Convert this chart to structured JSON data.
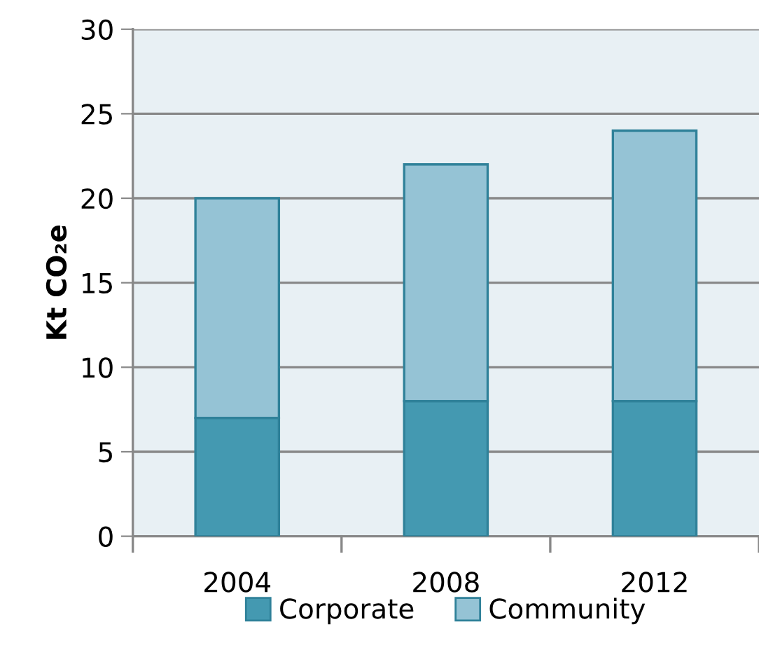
{
  "chart_data": {
    "type": "bar",
    "stacked": true,
    "ylabel": "Kt CO₂e",
    "categories": [
      "2004",
      "2008",
      "2012"
    ],
    "series": [
      {
        "name": "Corporate",
        "color": "#4499b1",
        "values": [
          7,
          8,
          8
        ]
      },
      {
        "name": "Community",
        "color": "#95c3d5",
        "values": [
          13,
          14,
          16
        ]
      }
    ],
    "ylim": [
      0,
      30
    ],
    "yticks": [
      0,
      5,
      10,
      15,
      20,
      25,
      30
    ],
    "grid": "y",
    "legend": "bottom"
  }
}
